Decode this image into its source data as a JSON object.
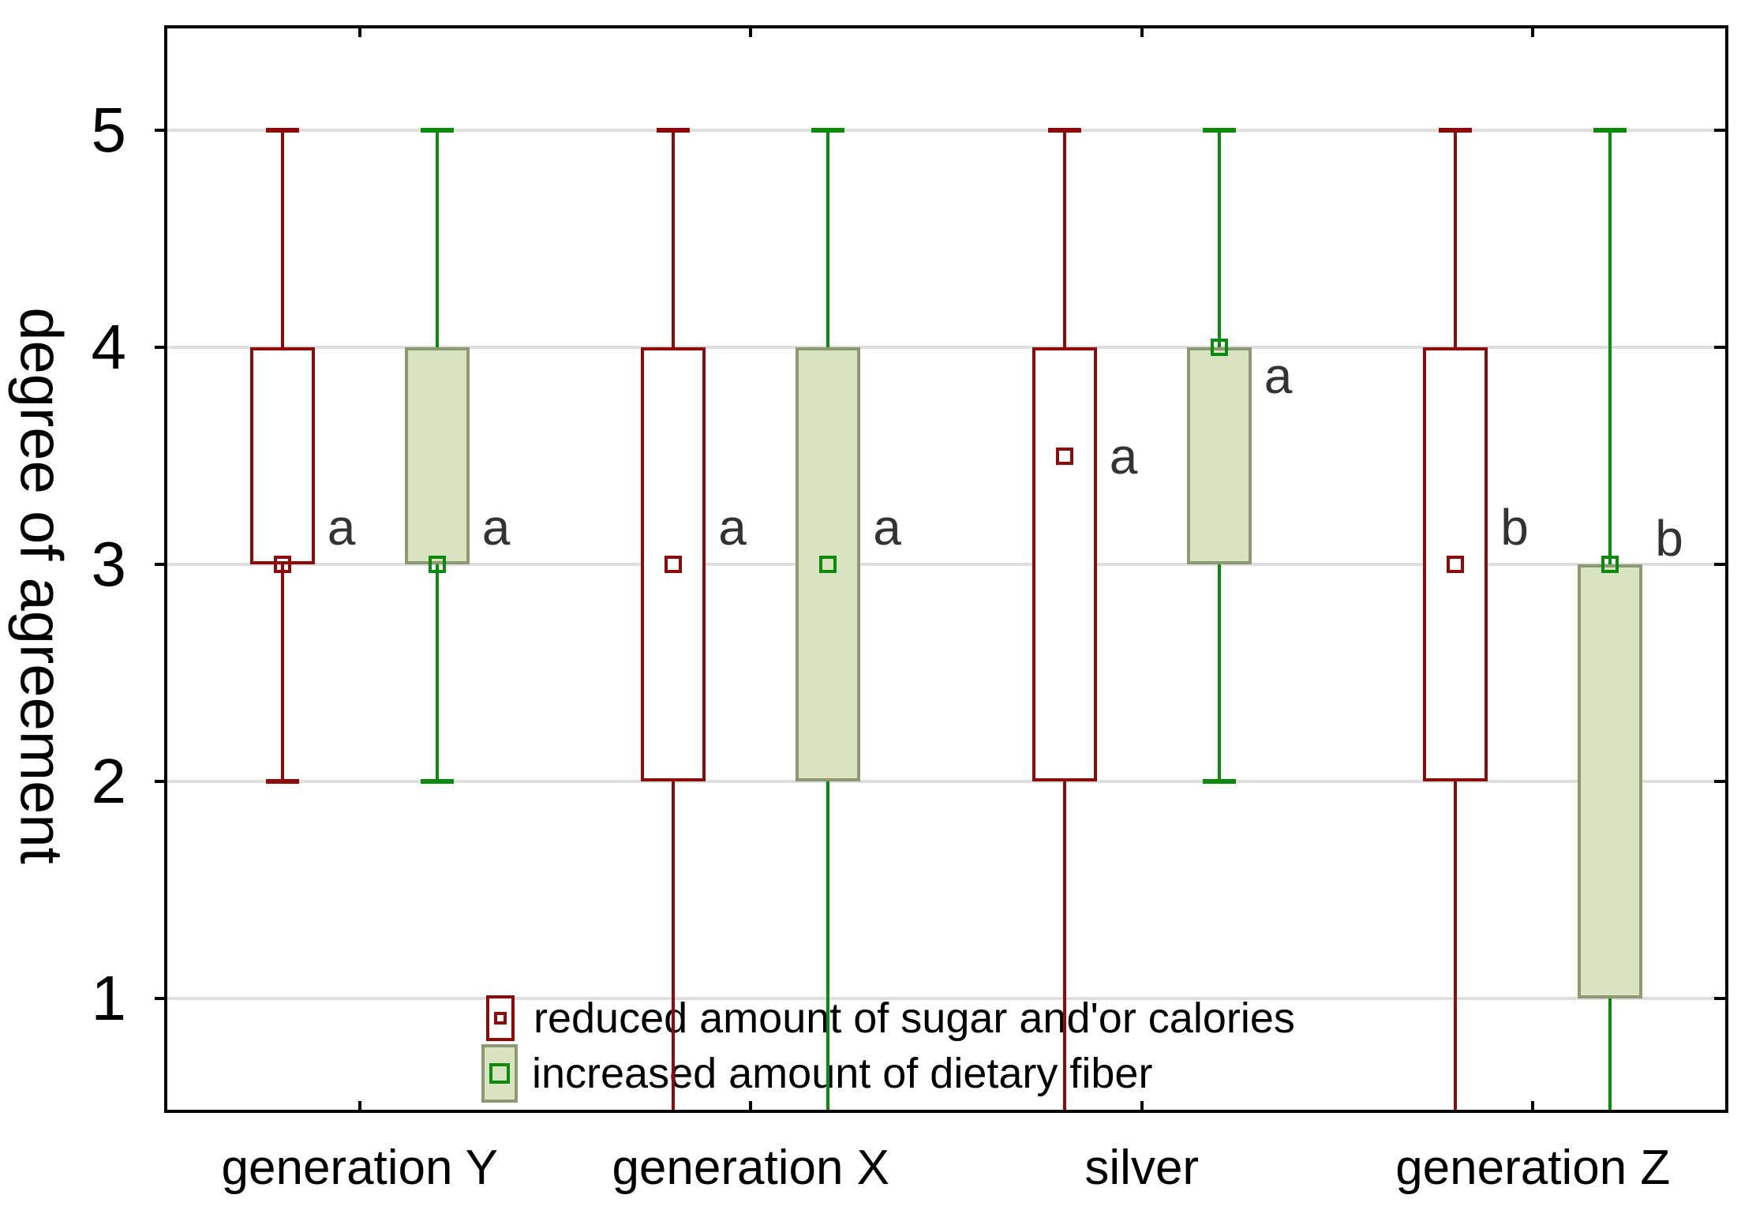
{
  "chart": {
    "ylabel": "degree of agreement",
    "legend": {
      "items": [
        {
          "label": "reduced amount of sugar and'or calories"
        },
        {
          "label": "increased amount of dietary fiber"
        }
      ]
    }
  },
  "chart_data": {
    "type": "boxplot",
    "title": "",
    "xlabel": "",
    "ylabel": "degree of agreement",
    "ylim": [
      0.5,
      5.5
    ],
    "yticks": [
      "1",
      "2",
      "3",
      "4",
      "5"
    ],
    "grid": "horizontal",
    "legend_position": "inside-bottom",
    "categories": [
      "generation Y",
      "generation X",
      "silver",
      "generation Z"
    ],
    "colors": {
      "sugar_line": "#8B0B0B",
      "sugar_box_fill": "#FFFFFF",
      "fiber_line": "#0B8A0B",
      "fiber_box_border": "#8C9A72",
      "fiber_box_fill": "#D9E3C2",
      "gridline": "#DEDEDE",
      "frame": "#000000",
      "sig_letter_color": "#333333"
    },
    "series": [
      {
        "name": "reduced amount of sugar and'or calories",
        "line_color": "#8B0B0B",
        "box_border": "#8B0B0B",
        "box_fill": "#FFFFFF",
        "boxes": [
          {
            "category": "generation Y",
            "whisker_high": 5,
            "q3": 4,
            "median": 3,
            "q1": 3,
            "whisker_low": 2,
            "whisker_low_clipped": false,
            "sig_letter": "a",
            "sig_letter_y": 3.17
          },
          {
            "category": "generation X",
            "whisker_high": 5,
            "q3": 4,
            "median": 3,
            "q1": 2,
            "whisker_low": 0.5,
            "whisker_low_clipped": true,
            "sig_letter": "a",
            "sig_letter_y": 3.17
          },
          {
            "category": "silver",
            "whisker_high": 5,
            "q3": 4,
            "median": 3.5,
            "q1": 2,
            "whisker_low": 0.5,
            "whisker_low_clipped": true,
            "sig_letter": "a",
            "sig_letter_y": 3.5
          },
          {
            "category": "generation Z",
            "whisker_high": 5,
            "q3": 4,
            "median": 3,
            "q1": 2,
            "whisker_low": 0.5,
            "whisker_low_clipped": true,
            "sig_letter": "b",
            "sig_letter_y": 3.17
          }
        ]
      },
      {
        "name": "increased amount of dietary fiber",
        "line_color": "#0B8A0B",
        "box_border": "#8C9A72",
        "box_fill": "#D9E3C2",
        "boxes": [
          {
            "category": "generation Y",
            "whisker_high": 5,
            "q3": 4,
            "median": 3,
            "q1": 3,
            "whisker_low": 2,
            "whisker_low_clipped": false,
            "sig_letter": "a",
            "sig_letter_y": 3.17
          },
          {
            "category": "generation X",
            "whisker_high": 5,
            "q3": 4,
            "median": 3,
            "q1": 2,
            "whisker_low": 0.5,
            "whisker_low_clipped": true,
            "sig_letter": "a",
            "sig_letter_y": 3.17
          },
          {
            "category": "silver",
            "whisker_high": 5,
            "q3": 4,
            "median": 4,
            "q1": 3,
            "whisker_low": 2,
            "whisker_low_clipped": false,
            "sig_letter": "a",
            "sig_letter_y": 3.87
          },
          {
            "category": "generation Z",
            "whisker_high": 5,
            "q3": 3,
            "median": 3,
            "q1": 1,
            "whisker_low": 0.5,
            "whisker_low_clipped": true,
            "sig_letter": "b",
            "sig_letter_y": 3.12
          }
        ]
      }
    ]
  }
}
